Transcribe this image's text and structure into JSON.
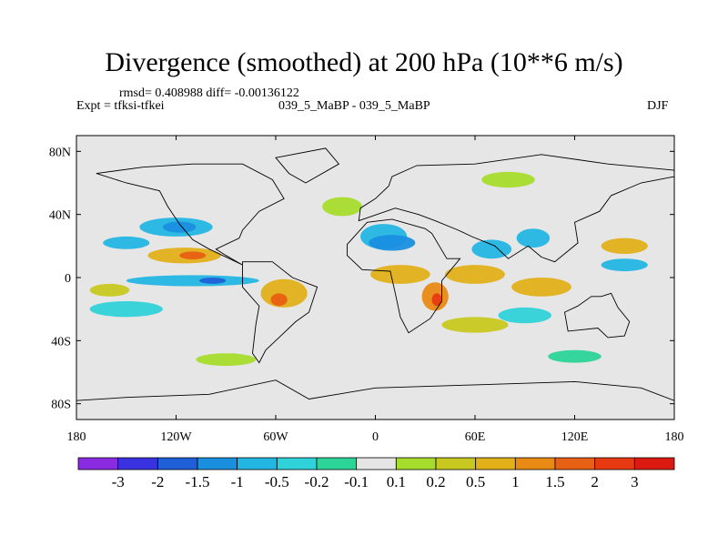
{
  "chart_data": {
    "type": "heatmap",
    "title": "Divergence (smoothed) at 200 hPa (10**6 m/s)",
    "stats": "rmsd= 0.408988  diff= -0.00136122",
    "experiment": "Expt = tfksi-tfkei",
    "period": "039_5_MaBP - 039_5_MaBP",
    "season": "DJF",
    "x_range": [
      -180,
      180
    ],
    "y_range": [
      -90,
      90
    ],
    "xticks": [
      {
        "value": -180,
        "label": "180"
      },
      {
        "value": -120,
        "label": "120W"
      },
      {
        "value": -60,
        "label": "60W"
      },
      {
        "value": 0,
        "label": "0"
      },
      {
        "value": 60,
        "label": "60E"
      },
      {
        "value": 120,
        "label": "120E"
      },
      {
        "value": 180,
        "label": "180"
      }
    ],
    "yticks": [
      {
        "value": 80,
        "label": "80N"
      },
      {
        "value": 40,
        "label": "40N"
      },
      {
        "value": 0,
        "label": "0"
      },
      {
        "value": -40,
        "label": "40S"
      },
      {
        "value": -80,
        "label": "80S"
      }
    ],
    "colorbar": {
      "labels": [
        "-3",
        "-2",
        "-1.5",
        "-1",
        "-0.5",
        "-0.2",
        "-0.1",
        "0.1",
        "0.2",
        "0.5",
        "1",
        "1.5",
        "2",
        "3"
      ],
      "colors": [
        "#8a2be2",
        "#3a32e0",
        "#1f5fd8",
        "#1a8fe0",
        "#23b6e3",
        "#2fd2d8",
        "#2dd49a",
        "#e5e5e5",
        "#a6dc2b",
        "#c8c820",
        "#e2b019",
        "#e88a14",
        "#e86013",
        "#e83a12",
        "#dd1a12"
      ]
    },
    "map_background": "#e6e6e6",
    "features": [
      {
        "name": "blue-band-north-pacific-east",
        "lon": -120,
        "lat": 32,
        "rx": 22,
        "ry": 6,
        "level": 4
      },
      {
        "name": "blue-core-north-pacific",
        "lon": -118,
        "lat": 32,
        "rx": 10,
        "ry": 3.5,
        "level": 3
      },
      {
        "name": "blue-band-north-pacific-west",
        "lon": -150,
        "lat": 22,
        "rx": 14,
        "ry": 4,
        "level": 4
      },
      {
        "name": "orange-band-east-pacific",
        "lon": -115,
        "lat": 14,
        "rx": 22,
        "ry": 5,
        "level": 10
      },
      {
        "name": "red-core-east-pacific",
        "lon": -110,
        "lat": 14,
        "rx": 8,
        "ry": 2.5,
        "level": 12
      },
      {
        "name": "blue-band-equatorial-pacific",
        "lon": -110,
        "lat": -2,
        "rx": 40,
        "ry": 3.5,
        "level": 4
      },
      {
        "name": "blue-core-equatorial-pacific",
        "lon": -98,
        "lat": -2,
        "rx": 8,
        "ry": 2,
        "level": 2
      },
      {
        "name": "orange-amazon",
        "lon": -55,
        "lat": -10,
        "rx": 14,
        "ry": 9,
        "level": 10
      },
      {
        "name": "red-core-amazon",
        "lon": -58,
        "lat": -14,
        "rx": 5,
        "ry": 4,
        "level": 12
      },
      {
        "name": "orange-north-africa",
        "lon": 15,
        "lat": 2,
        "rx": 18,
        "ry": 6,
        "level": 10
      },
      {
        "name": "blue-north-africa",
        "lon": 5,
        "lat": 26,
        "rx": 14,
        "ry": 8,
        "level": 4
      },
      {
        "name": "blue-asia-jet",
        "lon": 10,
        "lat": 22,
        "rx": 14,
        "ry": 5,
        "level": 3
      },
      {
        "name": "red-east-africa",
        "lon": 36,
        "lat": -12,
        "rx": 8,
        "ry": 9,
        "level": 11
      },
      {
        "name": "red-core-east-africa",
        "lon": 37,
        "lat": -14,
        "rx": 3,
        "ry": 4,
        "level": 13
      },
      {
        "name": "orange-south-asia",
        "lon": 60,
        "lat": 2,
        "rx": 18,
        "ry": 6,
        "level": 10
      },
      {
        "name": "blue-indian-ocean",
        "lon": 70,
        "lat": 18,
        "rx": 12,
        "ry": 6,
        "level": 4
      },
      {
        "name": "blue-east-asia",
        "lon": 95,
        "lat": 25,
        "rx": 10,
        "ry": 6,
        "level": 4
      },
      {
        "name": "orange-maritime-continent",
        "lon": 100,
        "lat": -6,
        "rx": 18,
        "ry": 6,
        "level": 10
      },
      {
        "name": "blue-south-pacific",
        "lon": -150,
        "lat": -20,
        "rx": 22,
        "ry": 5,
        "level": 5
      },
      {
        "name": "orange-south-pacific",
        "lon": -160,
        "lat": -8,
        "rx": 12,
        "ry": 4,
        "level": 9
      },
      {
        "name": "green-south-indian",
        "lon": 60,
        "lat": -30,
        "rx": 20,
        "ry": 5,
        "level": 9
      },
      {
        "name": "blue-south-indian",
        "lon": 90,
        "lat": -24,
        "rx": 16,
        "ry": 5,
        "level": 5
      },
      {
        "name": "green-north-atlantic",
        "lon": -20,
        "lat": 45,
        "rx": 12,
        "ry": 6,
        "level": 8
      },
      {
        "name": "orange-north-pacific",
        "lon": 150,
        "lat": 20,
        "rx": 14,
        "ry": 5,
        "level": 10
      },
      {
        "name": "blue-west-pacific",
        "lon": 150,
        "lat": 8,
        "rx": 14,
        "ry": 4,
        "level": 4
      },
      {
        "name": "green-arctic-asia",
        "lon": 80,
        "lat": 62,
        "rx": 16,
        "ry": 5,
        "level": 8
      },
      {
        "name": "green-southern-ocean",
        "lon": -90,
        "lat": -52,
        "rx": 18,
        "ry": 4,
        "level": 8
      },
      {
        "name": "cyan-southern-ocean-east",
        "lon": 120,
        "lat": -50,
        "rx": 16,
        "ry": 4,
        "level": 6
      }
    ]
  }
}
